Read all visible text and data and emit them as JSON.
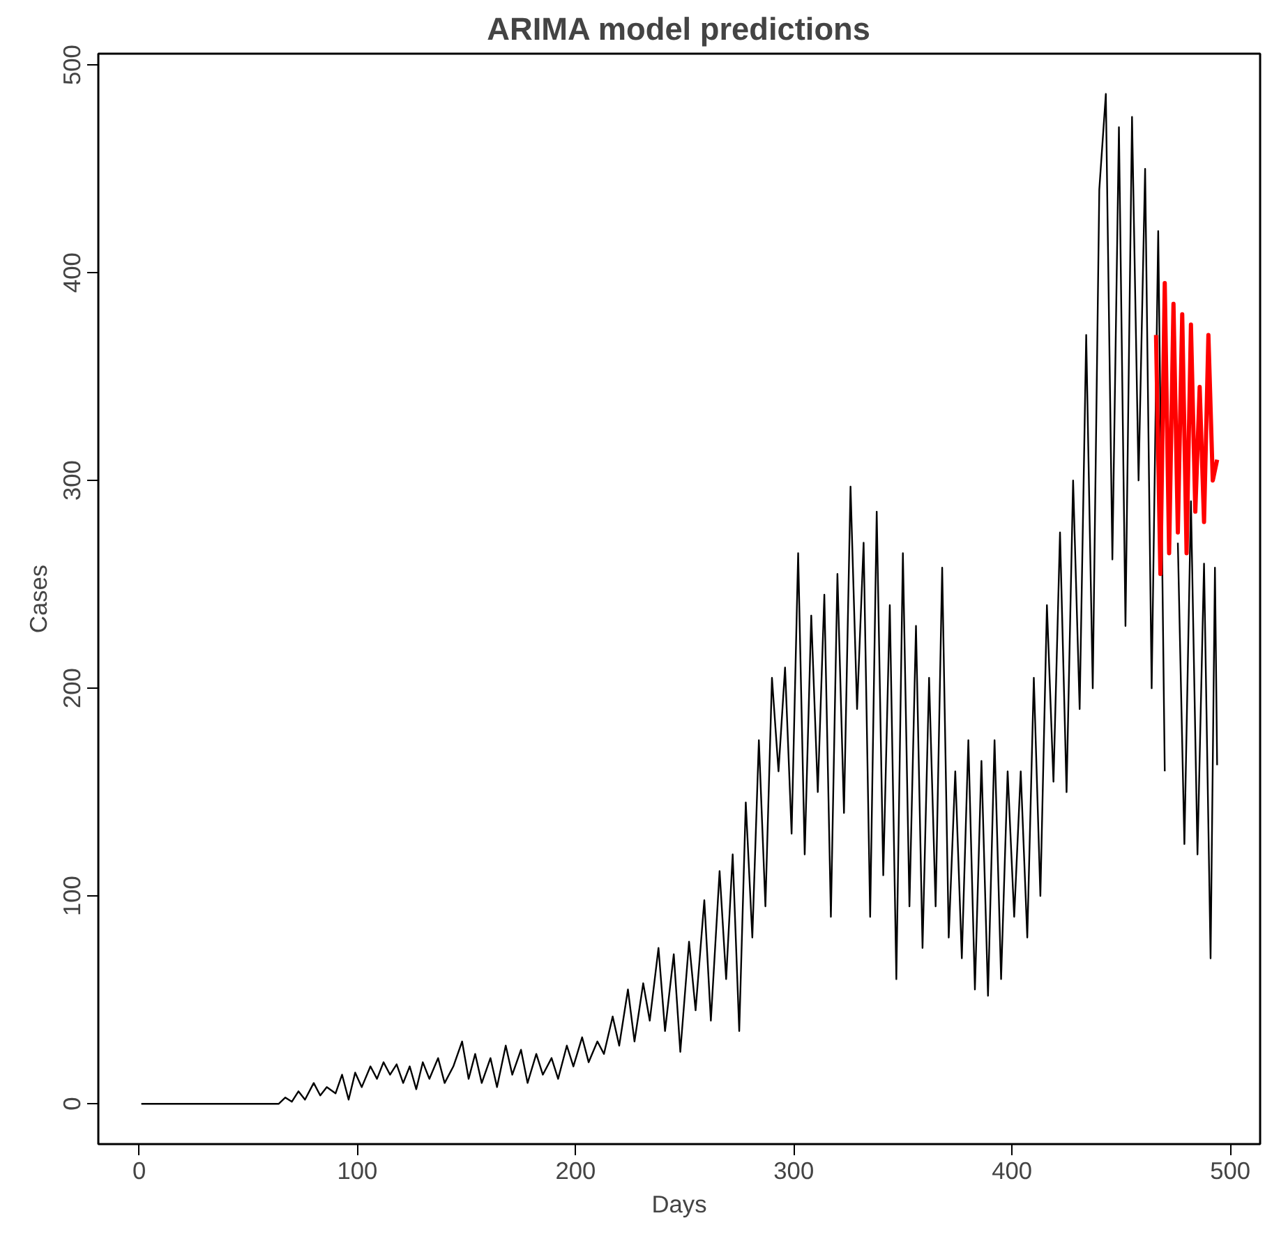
{
  "chart_data": {
    "type": "line",
    "title": "ARIMA model predictions",
    "xlabel": "Days",
    "ylabel": "Cases",
    "xlim": [
      -18.7,
      513.7
    ],
    "ylim": [
      -19.4,
      505.4
    ],
    "xticks": [
      0,
      100,
      200,
      300,
      400,
      500
    ],
    "yticks": [
      0,
      100,
      200,
      300,
      400,
      500
    ],
    "grid": false,
    "marker": "none",
    "line_style": "solid",
    "series": [
      {
        "color": "#000000",
        "x": [
          1,
          64,
          67,
          70,
          73,
          76,
          80,
          83,
          86,
          90,
          93,
          96,
          99,
          102,
          106,
          109,
          112,
          115,
          118,
          121,
          124,
          127,
          130,
          133,
          137,
          140,
          144,
          148,
          151,
          154,
          157,
          161,
          164,
          168,
          171,
          175,
          178,
          182,
          185,
          189,
          192,
          196,
          199,
          203,
          206,
          210,
          213,
          217,
          220,
          224,
          227,
          231,
          234,
          238,
          241,
          245,
          248,
          252,
          255,
          259,
          262,
          266,
          269,
          272,
          275,
          278,
          281,
          284,
          287,
          290,
          293,
          296,
          299,
          302,
          305,
          308,
          311,
          314,
          317,
          320,
          323,
          326,
          329,
          332,
          335,
          338,
          341,
          344,
          347,
          350,
          353,
          356,
          359,
          362,
          365,
          368,
          371,
          374,
          377,
          380,
          383,
          386,
          389,
          392,
          395,
          398,
          401,
          404,
          407,
          410,
          413,
          416,
          419,
          422,
          425,
          428,
          431,
          434,
          437,
          440,
          443,
          446,
          449,
          452,
          455,
          458,
          461,
          464,
          467,
          470,
          473,
          476,
          479,
          482,
          485,
          488,
          491,
          493,
          494
        ],
        "values": [
          0,
          0,
          3,
          1,
          6,
          2,
          10,
          4,
          8,
          5,
          14,
          2,
          15,
          8,
          18,
          12,
          20,
          14,
          19,
          10,
          18,
          7,
          20,
          12,
          22,
          10,
          18,
          30,
          12,
          24,
          10,
          22,
          8,
          28,
          14,
          26,
          10,
          24,
          14,
          22,
          12,
          28,
          18,
          32,
          20,
          30,
          24,
          42,
          28,
          55,
          30,
          58,
          40,
          75,
          35,
          72,
          25,
          78,
          45,
          98,
          40,
          112,
          60,
          120,
          35,
          145,
          80,
          175,
          95,
          205,
          160,
          210,
          130,
          265,
          120,
          235,
          150,
          245,
          90,
          255,
          140,
          297,
          190,
          270,
          90,
          285,
          110,
          240,
          60,
          265,
          95,
          230,
          75,
          205,
          95,
          258,
          80,
          160,
          70,
          175,
          55,
          165,
          52,
          175,
          60,
          160,
          90,
          160,
          80,
          205,
          100,
          240,
          155,
          275,
          150,
          300,
          190,
          370,
          200,
          440,
          486,
          262,
          470,
          230,
          475,
          300,
          450,
          200,
          420,
          160,
          null,
          270,
          125,
          290,
          120,
          260,
          70,
          258,
          163
        ]
      },
      {
        "color": "#ff0000",
        "x": [
          466,
          468,
          470,
          472,
          474,
          476,
          478,
          480,
          482,
          484,
          486,
          488,
          490,
          492,
          494
        ],
        "values": [
          370,
          255,
          395,
          265,
          385,
          275,
          380,
          265,
          375,
          285,
          345,
          280,
          370,
          300,
          310
        ]
      }
    ]
  }
}
